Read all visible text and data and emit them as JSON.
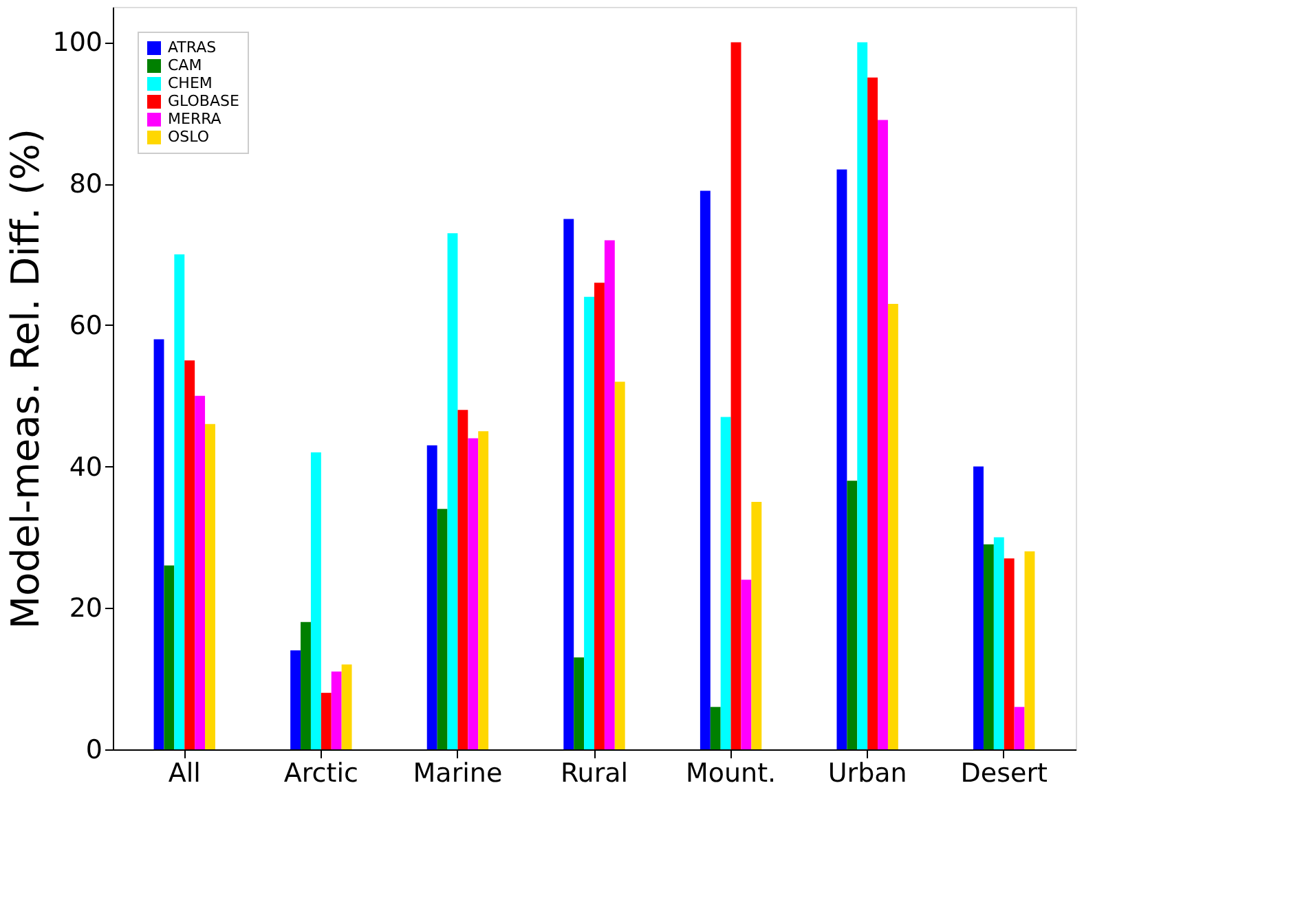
{
  "chart_data": {
    "type": "bar",
    "ylabel": "Model-meas. Rel. Diff. (%)",
    "categories": [
      "All",
      "Arctic",
      "Marine",
      "Rural",
      "Mount.",
      "Urban",
      "Desert"
    ],
    "series": [
      {
        "name": "ATRAS",
        "color": "#0000ff",
        "values": [
          58,
          14,
          43,
          75,
          79,
          82,
          40
        ]
      },
      {
        "name": "CAM",
        "color": "#008000",
        "values": [
          26,
          18,
          34,
          13,
          6,
          38,
          29
        ]
      },
      {
        "name": "CHEM",
        "color": "#00ffff",
        "values": [
          70,
          42,
          73,
          64,
          47,
          100,
          30
        ]
      },
      {
        "name": "GLOBASE",
        "color": "#ff0000",
        "values": [
          55,
          8,
          48,
          66,
          100,
          95,
          27
        ]
      },
      {
        "name": "MERRA",
        "color": "#ff00ff",
        "values": [
          50,
          11,
          44,
          72,
          24,
          89,
          6
        ]
      },
      {
        "name": "OSLO",
        "color": "#ffd700",
        "values": [
          46,
          12,
          45,
          52,
          35,
          63,
          28
        ]
      }
    ],
    "ylim": [
      0,
      105
    ],
    "yticks": [
      0,
      20,
      40,
      60,
      80,
      100
    ],
    "grid": false,
    "legend": "top left"
  }
}
